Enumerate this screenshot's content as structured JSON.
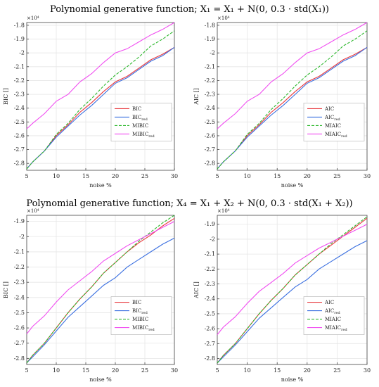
{
  "titles": {
    "top": "Polynomial generative function; X₁ = X₁ + N(0, 0.3 · std(X₁))",
    "bottom": "Polynomial generative function; X₄ = X₁ + X₂ + N(0, 0.3 · std(X₁ + X₂))"
  },
  "colors": {
    "red": "#e8383d",
    "blue": "#3a6fe0",
    "green": "#2eb82e",
    "magenta": "#f04cf0",
    "grid": "#e6e6e6",
    "axis": "#444444"
  },
  "chart_data": [
    {
      "type": "line",
      "xlabel": "noise %",
      "ylabel": "BIC []",
      "exponent_label": "×10⁴",
      "xlim": [
        5,
        30
      ],
      "ylim": [
        -2.85,
        -1.78
      ],
      "xticks": [
        5,
        10,
        15,
        20,
        25,
        30
      ],
      "yticks": [
        -2.8,
        -2.7,
        -2.6,
        -2.5,
        -2.4,
        -2.3,
        -2.2,
        -2.1,
        -2.0,
        -1.9,
        -1.8
      ],
      "x": [
        5,
        6,
        8,
        10,
        12,
        14,
        16,
        18,
        20,
        22,
        24,
        26,
        28,
        30
      ],
      "legend_position": "center-right",
      "series": [
        {
          "name": "BIC",
          "color": "red",
          "dash": "solid",
          "values": [
            -2.84,
            -2.79,
            -2.71,
            -2.6,
            -2.52,
            -2.43,
            -2.36,
            -2.28,
            -2.21,
            -2.17,
            -2.11,
            -2.05,
            -2.01,
            -1.96
          ]
        },
        {
          "name": "BIC_red",
          "color": "blue",
          "dash": "solid",
          "values": [
            -2.84,
            -2.79,
            -2.71,
            -2.61,
            -2.53,
            -2.45,
            -2.38,
            -2.3,
            -2.22,
            -2.18,
            -2.12,
            -2.06,
            -2.02,
            -1.96
          ]
        },
        {
          "name": "MIBIC",
          "color": "green",
          "dash": "dashed",
          "values": [
            -2.84,
            -2.79,
            -2.71,
            -2.59,
            -2.51,
            -2.41,
            -2.33,
            -2.24,
            -2.16,
            -2.1,
            -2.03,
            -1.95,
            -1.9,
            -1.84
          ]
        },
        {
          "name": "MIBIC_red",
          "color": "magenta",
          "dash": "solid",
          "values": [
            -2.55,
            -2.51,
            -2.44,
            -2.35,
            -2.3,
            -2.21,
            -2.15,
            -2.07,
            -2.0,
            -1.97,
            -1.92,
            -1.87,
            -1.83,
            -1.78
          ]
        }
      ]
    },
    {
      "type": "line",
      "xlabel": "noise %",
      "ylabel": "AIC []",
      "exponent_label": "×10⁴",
      "xlim": [
        5,
        30
      ],
      "ylim": [
        -2.85,
        -1.78
      ],
      "xticks": [
        5,
        10,
        15,
        20,
        25,
        30
      ],
      "yticks": [
        -2.8,
        -2.7,
        -2.6,
        -2.5,
        -2.4,
        -2.3,
        -2.2,
        -2.1,
        -2.0,
        -1.9,
        -1.8
      ],
      "x": [
        5,
        6,
        8,
        10,
        12,
        14,
        16,
        18,
        20,
        22,
        24,
        26,
        28,
        30
      ],
      "legend_position": "center-right",
      "series": [
        {
          "name": "AIC",
          "color": "red",
          "dash": "solid",
          "values": [
            -2.84,
            -2.79,
            -2.71,
            -2.6,
            -2.52,
            -2.43,
            -2.36,
            -2.28,
            -2.21,
            -2.17,
            -2.11,
            -2.05,
            -2.01,
            -1.96
          ]
        },
        {
          "name": "AIC_red",
          "color": "blue",
          "dash": "solid",
          "values": [
            -2.84,
            -2.79,
            -2.71,
            -2.61,
            -2.53,
            -2.45,
            -2.38,
            -2.3,
            -2.22,
            -2.18,
            -2.12,
            -2.06,
            -2.02,
            -1.96
          ]
        },
        {
          "name": "MIAIC",
          "color": "green",
          "dash": "dashed",
          "values": [
            -2.84,
            -2.79,
            -2.71,
            -2.59,
            -2.51,
            -2.41,
            -2.33,
            -2.24,
            -2.16,
            -2.1,
            -2.03,
            -1.95,
            -1.9,
            -1.84
          ]
        },
        {
          "name": "MIAIC_red",
          "color": "magenta",
          "dash": "solid",
          "values": [
            -2.55,
            -2.51,
            -2.44,
            -2.35,
            -2.3,
            -2.21,
            -2.15,
            -2.07,
            -2.0,
            -1.97,
            -1.92,
            -1.87,
            -1.83,
            -1.78
          ]
        }
      ]
    },
    {
      "type": "line",
      "xlabel": "noise %",
      "ylabel": "BIC []",
      "exponent_label": "×10⁴",
      "xlim": [
        5,
        30
      ],
      "ylim": [
        -2.84,
        -1.86
      ],
      "xticks": [
        5,
        10,
        15,
        20,
        25,
        30
      ],
      "yticks": [
        -2.8,
        -2.7,
        -2.6,
        -2.5,
        -2.4,
        -2.3,
        -2.2,
        -2.1,
        -2.0,
        -1.9
      ],
      "x": [
        5,
        6,
        8,
        10,
        12,
        14,
        16,
        18,
        20,
        22,
        24,
        26,
        28,
        30
      ],
      "legend_position": "center-right",
      "series": [
        {
          "name": "BIC",
          "color": "red",
          "dash": "solid",
          "values": [
            -2.83,
            -2.78,
            -2.7,
            -2.6,
            -2.5,
            -2.41,
            -2.33,
            -2.24,
            -2.17,
            -2.1,
            -2.04,
            -1.99,
            -1.93,
            -1.88
          ]
        },
        {
          "name": "BIC_red",
          "color": "blue",
          "dash": "solid",
          "values": [
            -2.83,
            -2.79,
            -2.71,
            -2.62,
            -2.53,
            -2.46,
            -2.39,
            -2.32,
            -2.27,
            -2.2,
            -2.15,
            -2.1,
            -2.05,
            -2.01
          ]
        },
        {
          "name": "MIBIC",
          "color": "green",
          "dash": "dashed",
          "values": [
            -2.83,
            -2.78,
            -2.7,
            -2.6,
            -2.5,
            -2.41,
            -2.33,
            -2.24,
            -2.17,
            -2.1,
            -2.03,
            -1.97,
            -1.91,
            -1.86
          ]
        },
        {
          "name": "MIBIC_red",
          "color": "magenta",
          "dash": "solid",
          "values": [
            -2.64,
            -2.59,
            -2.52,
            -2.43,
            -2.35,
            -2.29,
            -2.23,
            -2.16,
            -2.11,
            -2.06,
            -2.02,
            -1.98,
            -1.94,
            -1.9
          ]
        }
      ]
    },
    {
      "type": "line",
      "xlabel": "noise %",
      "ylabel": "AIC []",
      "exponent_label": "×10⁴",
      "xlim": [
        5,
        30
      ],
      "ylim": [
        -2.84,
        -1.84
      ],
      "xticks": [
        5,
        10,
        15,
        20,
        25,
        30
      ],
      "yticks": [
        -2.8,
        -2.7,
        -2.6,
        -2.5,
        -2.4,
        -2.3,
        -2.2,
        -2.1,
        -2.0,
        -1.9
      ],
      "x": [
        5,
        6,
        8,
        10,
        12,
        14,
        16,
        18,
        20,
        22,
        24,
        26,
        28,
        30
      ],
      "legend_position": "center-right",
      "series": [
        {
          "name": "AIC",
          "color": "red",
          "dash": "solid",
          "values": [
            -2.83,
            -2.78,
            -2.7,
            -2.6,
            -2.5,
            -2.41,
            -2.33,
            -2.24,
            -2.17,
            -2.1,
            -2.04,
            -1.98,
            -1.92,
            -1.86
          ]
        },
        {
          "name": "AIC_red",
          "color": "blue",
          "dash": "solid",
          "values": [
            -2.83,
            -2.79,
            -2.71,
            -2.62,
            -2.53,
            -2.46,
            -2.39,
            -2.32,
            -2.27,
            -2.2,
            -2.15,
            -2.1,
            -2.05,
            -2.01
          ]
        },
        {
          "name": "MIAIC",
          "color": "green",
          "dash": "dashed",
          "values": [
            -2.83,
            -2.78,
            -2.7,
            -2.6,
            -2.5,
            -2.41,
            -2.33,
            -2.24,
            -2.17,
            -2.1,
            -2.03,
            -1.97,
            -1.91,
            -1.85
          ]
        },
        {
          "name": "MIAIC_red",
          "color": "magenta",
          "dash": "solid",
          "values": [
            -2.64,
            -2.59,
            -2.52,
            -2.43,
            -2.35,
            -2.29,
            -2.23,
            -2.16,
            -2.11,
            -2.06,
            -2.02,
            -1.98,
            -1.94,
            -1.9
          ]
        }
      ]
    }
  ]
}
